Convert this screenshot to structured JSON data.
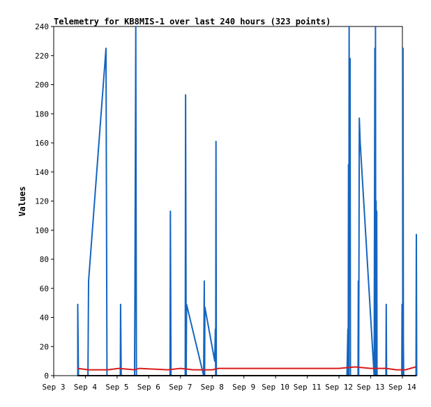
{
  "chart_data": {
    "type": "line",
    "title": "Telemetry for KB8MIS-1 over last 240 hours (323 points)",
    "xlabel": "",
    "ylabel": "Values",
    "x_ticks": [
      "Sep 3",
      "Sep 4",
      "Sep 5",
      "Sep 6",
      "Sep 7",
      "Sep 8",
      "Sep 9",
      "Sep 10",
      "Sep 11",
      "Sep 12",
      "Sep 13",
      "Sep 14"
    ],
    "y_ticks": [
      0,
      20,
      40,
      60,
      80,
      100,
      120,
      140,
      160,
      180,
      200,
      220,
      240
    ],
    "xlim": [
      0,
      11
    ],
    "ylim": [
      0,
      240
    ],
    "x_unit": "days after Sep 3 00:00",
    "grid": false,
    "legend": "none",
    "series": [
      {
        "color": "#1565c0",
        "points": [
          [
            0.76,
            0
          ],
          [
            0.76,
            49
          ],
          [
            0.78,
            0
          ],
          [
            1.08,
            0
          ],
          [
            1.1,
            65
          ],
          [
            1.65,
            225
          ],
          [
            1.68,
            0
          ],
          [
            2.1,
            0
          ],
          [
            2.11,
            49
          ],
          [
            2.13,
            0
          ],
          [
            2.55,
            0
          ],
          [
            2.56,
            49
          ],
          [
            2.59,
            240
          ],
          [
            2.61,
            0
          ],
          [
            3.67,
            0
          ],
          [
            3.68,
            113
          ],
          [
            3.7,
            0
          ],
          [
            4.15,
            0
          ],
          [
            4.16,
            193
          ],
          [
            4.18,
            0
          ],
          [
            4.19,
            49
          ],
          [
            4.73,
            0
          ],
          [
            4.75,
            65
          ],
          [
            4.76,
            0
          ],
          [
            4.77,
            47
          ],
          [
            5.08,
            10
          ],
          [
            5.1,
            32
          ],
          [
            5.11,
            0
          ],
          [
            5.12,
            161
          ],
          [
            5.13,
            0
          ],
          [
            9.25,
            0
          ],
          [
            9.28,
            32
          ],
          [
            9.29,
            0
          ],
          [
            9.3,
            145
          ],
          [
            9.31,
            0
          ],
          [
            9.32,
            240
          ],
          [
            9.33,
            120
          ],
          [
            9.35,
            218
          ],
          [
            9.36,
            0
          ],
          [
            9.6,
            0
          ],
          [
            9.61,
            65
          ],
          [
            9.62,
            0
          ],
          [
            9.64,
            177
          ],
          [
            9.67,
            160
          ],
          [
            10.11,
            0
          ],
          [
            10.13,
            225
          ],
          [
            10.14,
            0
          ],
          [
            10.15,
            240
          ],
          [
            10.16,
            0
          ],
          [
            10.17,
            120
          ],
          [
            10.18,
            0
          ],
          [
            10.19,
            113
          ],
          [
            10.2,
            0
          ],
          [
            10.48,
            0
          ],
          [
            10.49,
            49
          ],
          [
            10.5,
            0
          ],
          [
            10.98,
            0
          ],
          [
            10.99,
            49
          ],
          [
            11.01,
            0
          ],
          [
            11.02,
            225
          ],
          [
            11.03,
            24
          ],
          [
            11.04,
            0
          ],
          [
            11.43,
            0
          ],
          [
            11.44,
            97
          ],
          [
            11.45,
            0
          ]
        ]
      },
      {
        "color": "#d81b1b",
        "points": [
          [
            0.75,
            5
          ],
          [
            1.1,
            4
          ],
          [
            1.7,
            4
          ],
          [
            2.05,
            5
          ],
          [
            2.55,
            4
          ],
          [
            2.7,
            5
          ],
          [
            3.6,
            4
          ],
          [
            4.0,
            5
          ],
          [
            4.4,
            4
          ],
          [
            5.0,
            4
          ],
          [
            5.2,
            5
          ],
          [
            9.0,
            5
          ],
          [
            9.5,
            6
          ],
          [
            10.0,
            5
          ],
          [
            10.5,
            5
          ],
          [
            10.8,
            4
          ],
          [
            11.1,
            4
          ],
          [
            11.42,
            6
          ]
        ]
      },
      {
        "color": "#000000",
        "points": [
          [
            0.75,
            0
          ],
          [
            11.45,
            0
          ]
        ]
      }
    ]
  }
}
